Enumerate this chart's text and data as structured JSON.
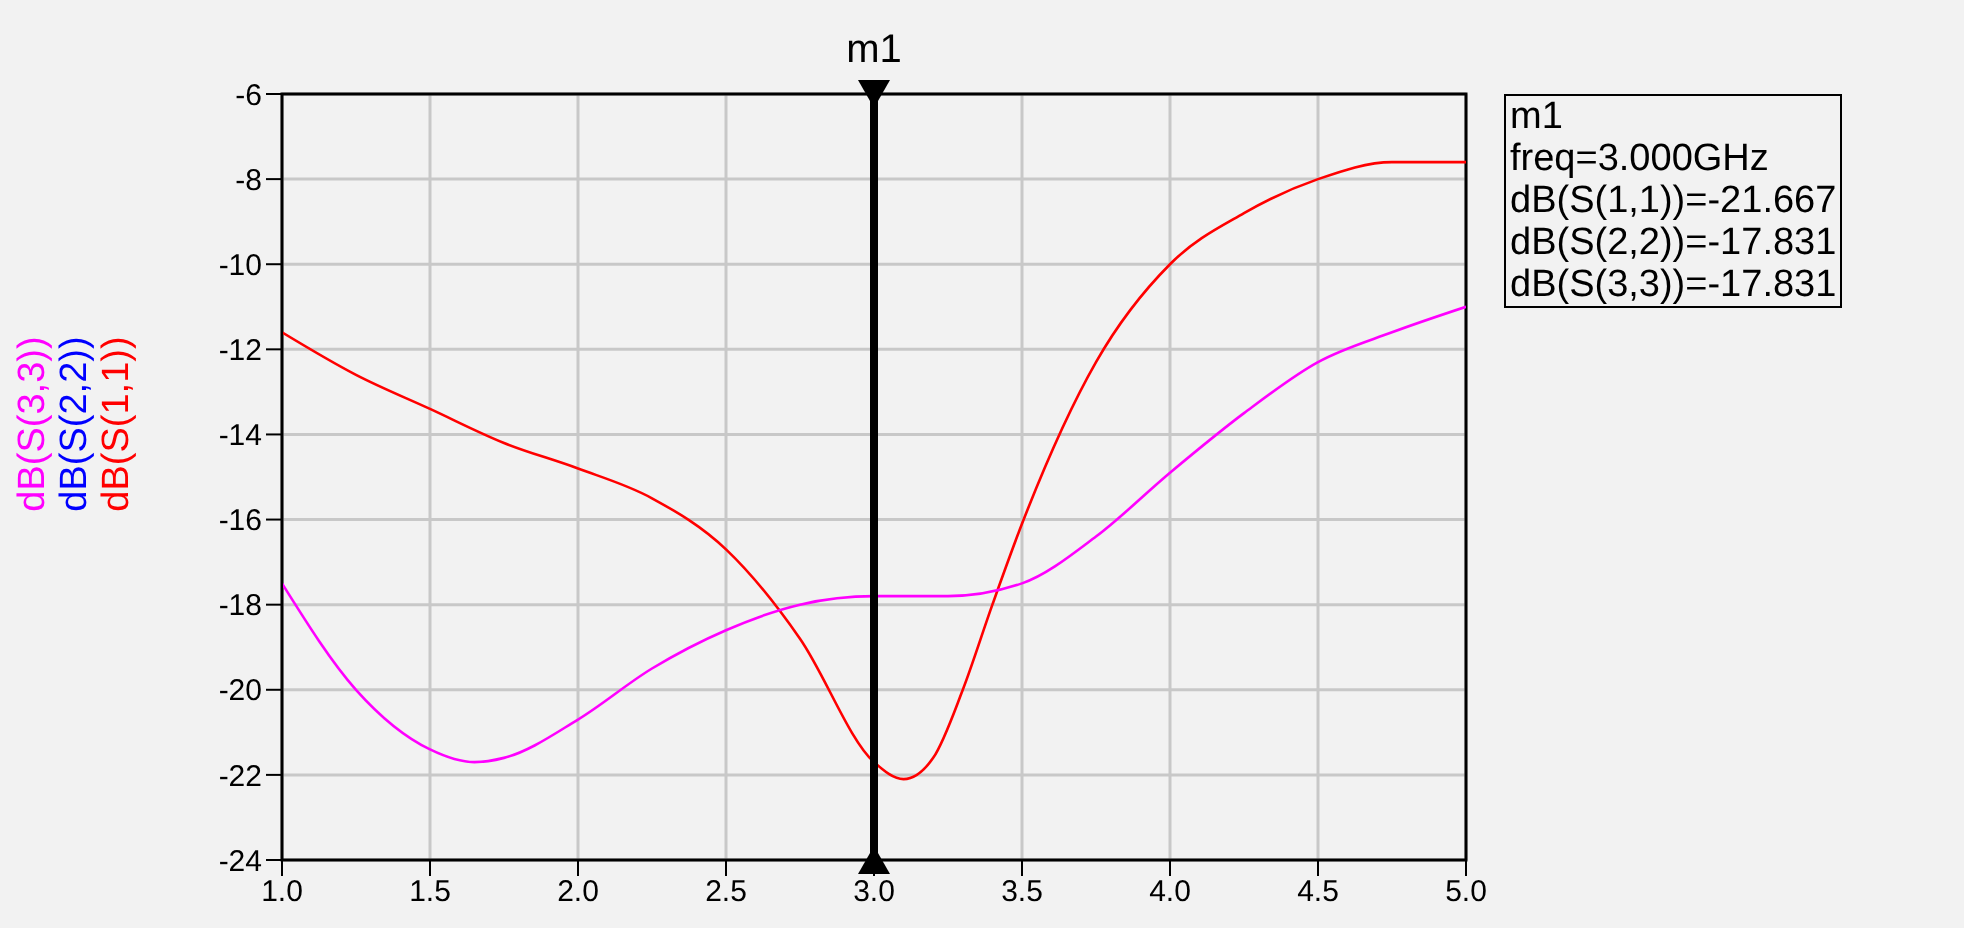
{
  "chart_data": {
    "type": "line",
    "xlim": [
      1.0,
      5.0
    ],
    "xticks": [
      {
        "value": 1,
        "label": "1.0"
      },
      {
        "value": 1.5,
        "label": "1.5"
      },
      {
        "value": 2,
        "label": "2.0"
      },
      {
        "value": 2.5,
        "label": "2.5"
      },
      {
        "value": 3,
        "label": "3.0"
      },
      {
        "value": 3.5,
        "label": "3.5"
      },
      {
        "value": 4,
        "label": "4.0"
      },
      {
        "value": 4.5,
        "label": "4.5"
      },
      {
        "value": 5,
        "label": "5.0"
      }
    ],
    "ylim": [
      -24,
      -6
    ],
    "yticks": [
      -24,
      -22,
      -20,
      -18,
      -16,
      -14,
      -12,
      -10,
      -8,
      -6
    ],
    "grid": true,
    "legend": "left",
    "marker": "none",
    "line_style": "solid",
    "series": [
      {
        "name": "dB(S(1,1))",
        "color": "#ff0000",
        "x": [
          1.0,
          1.25,
          1.5,
          1.75,
          2.0,
          2.25,
          2.5,
          2.75,
          3.0,
          3.1,
          3.2,
          3.3,
          3.4,
          3.5,
          3.75,
          4.0,
          4.25,
          4.5,
          4.75,
          5.0
        ],
        "values": [
          -11.6,
          -12.6,
          -13.4,
          -14.2,
          -14.8,
          -15.5,
          -16.7,
          -18.8,
          -21.7,
          -22.1,
          -21.6,
          -20.0,
          -18.0,
          -16.1,
          -12.3,
          -10.0,
          -8.8,
          -8.0,
          -7.6,
          -7.6
        ]
      },
      {
        "name": "dB(S(2,2))",
        "color": "#0000ff"
      },
      {
        "name": "dB(S(3,3))",
        "color": "#ff00ff",
        "x": [
          1.0,
          1.25,
          1.5,
          1.65,
          1.75,
          2.0,
          2.25,
          2.5,
          2.75,
          3.0,
          3.25,
          3.5,
          3.75,
          4.0,
          4.25,
          4.5,
          4.75,
          5.0
        ],
        "values": [
          -17.5,
          -20.0,
          -21.4,
          -21.7,
          -21.6,
          -20.7,
          -19.5,
          -18.6,
          -18.0,
          -17.8,
          -17.8,
          -17.5,
          -16.4,
          -14.9,
          -13.5,
          -12.3,
          -11.6,
          -11.0
        ]
      }
    ],
    "ref_lines": [
      {
        "axis": "x",
        "value": 3.0,
        "label": "m1",
        "color": "#000000"
      }
    ],
    "annotations": [
      "m1",
      "freq=3.000GHz",
      "dB(S(1,1))=-21.667",
      "dB(S(2,2))=-17.831",
      "dB(S(3,3))=-17.831"
    ]
  }
}
